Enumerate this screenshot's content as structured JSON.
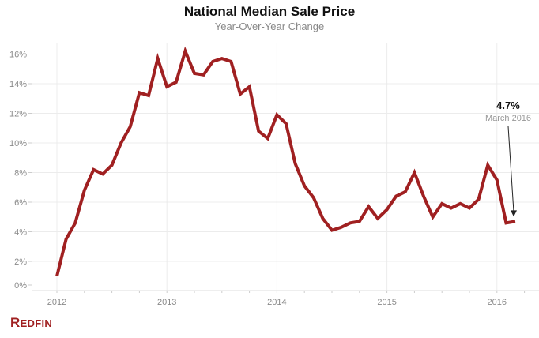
{
  "header": {
    "title": "National Median Sale Price",
    "subtitle": "Year-Over-Year Change"
  },
  "brand": {
    "logo_first": "R",
    "logo_rest": "EDFIN",
    "color": "#a02021"
  },
  "chart_data": {
    "type": "line",
    "title": "National Median Sale Price",
    "subtitle": "Year-Over-Year Change",
    "xlabel": "",
    "ylabel": "",
    "x_tick_labels": [
      "2012",
      "2013",
      "2014",
      "2015",
      "2016"
    ],
    "y_tick_labels": [
      "0%",
      "2%",
      "4%",
      "6%",
      "8%",
      "10%",
      "12%",
      "14%",
      "16%"
    ],
    "y_ticks": [
      0,
      2,
      4,
      6,
      8,
      10,
      12,
      14,
      16
    ],
    "ylim": [
      0,
      16.5
    ],
    "xlim": [
      "2011-11",
      "2016-07"
    ],
    "grid": true,
    "legend": "none",
    "line_color": "#a02021",
    "series": [
      {
        "name": "Year-Over-Year Change (%)",
        "x": [
          "2012-01",
          "2012-02",
          "2012-03",
          "2012-04",
          "2012-05",
          "2012-06",
          "2012-07",
          "2012-08",
          "2012-09",
          "2012-10",
          "2012-11",
          "2012-12",
          "2013-01",
          "2013-02",
          "2013-03",
          "2013-04",
          "2013-05",
          "2013-06",
          "2013-07",
          "2013-08",
          "2013-09",
          "2013-10",
          "2013-11",
          "2013-12",
          "2014-01",
          "2014-02",
          "2014-03",
          "2014-04",
          "2014-05",
          "2014-06",
          "2014-07",
          "2014-08",
          "2014-09",
          "2014-10",
          "2014-11",
          "2014-12",
          "2015-01",
          "2015-02",
          "2015-03",
          "2015-04",
          "2015-05",
          "2015-06",
          "2015-07",
          "2015-08",
          "2015-09",
          "2015-10",
          "2015-11",
          "2015-12",
          "2016-01",
          "2016-02",
          "2016-03"
        ],
        "values": [
          1.0,
          3.5,
          4.6,
          6.8,
          8.2,
          7.9,
          8.5,
          10.0,
          11.1,
          13.4,
          13.2,
          15.7,
          13.8,
          14.1,
          16.2,
          14.7,
          14.6,
          15.5,
          15.7,
          15.5,
          13.3,
          13.8,
          10.8,
          10.3,
          11.9,
          11.3,
          8.6,
          7.1,
          6.3,
          4.9,
          4.1,
          4.3,
          4.6,
          4.7,
          5.7,
          4.9,
          5.5,
          6.4,
          6.7,
          8.0,
          6.4,
          5.0,
          5.9,
          5.6,
          5.9,
          5.6,
          6.2,
          8.5,
          7.5,
          4.6,
          4.7
        ]
      }
    ],
    "annotations": [
      {
        "value_label": "4.7%",
        "date_label": "March 2016",
        "x": "2016-03",
        "y": 4.7
      }
    ]
  }
}
